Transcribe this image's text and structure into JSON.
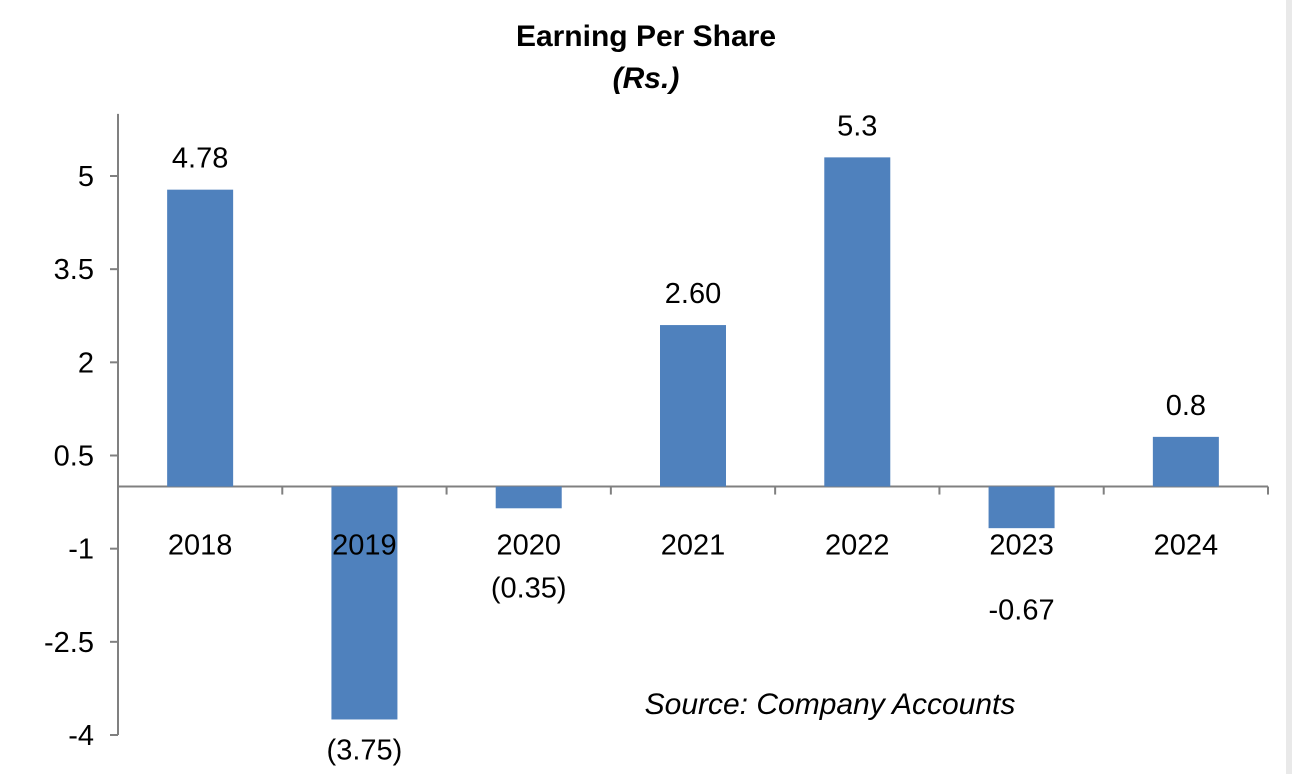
{
  "chart_data": {
    "type": "bar",
    "title": "Earning Per Share",
    "subtitle": "(Rs.)",
    "categories": [
      "2018",
      "2019",
      "2020",
      "2021",
      "2022",
      "2023",
      "2024"
    ],
    "values": [
      4.78,
      -3.75,
      -0.35,
      2.6,
      5.3,
      -0.67,
      0.8
    ],
    "data_labels": [
      "4.78",
      "(3.75)",
      "(0.35)",
      "2.60",
      "5.3",
      "-0.67",
      "0.8"
    ],
    "yticks": [
      "5",
      "3.5",
      "2",
      "0.5",
      "-1",
      "-2.5",
      "-4"
    ],
    "ytick_values": [
      5,
      3.5,
      2,
      0.5,
      -1,
      -2.5,
      -4
    ],
    "ylim": [
      -4,
      6
    ],
    "xlabel": "",
    "ylabel": "",
    "grid": false,
    "bar_color": "#4f81bd",
    "annotation": "Source: Company Accounts"
  }
}
